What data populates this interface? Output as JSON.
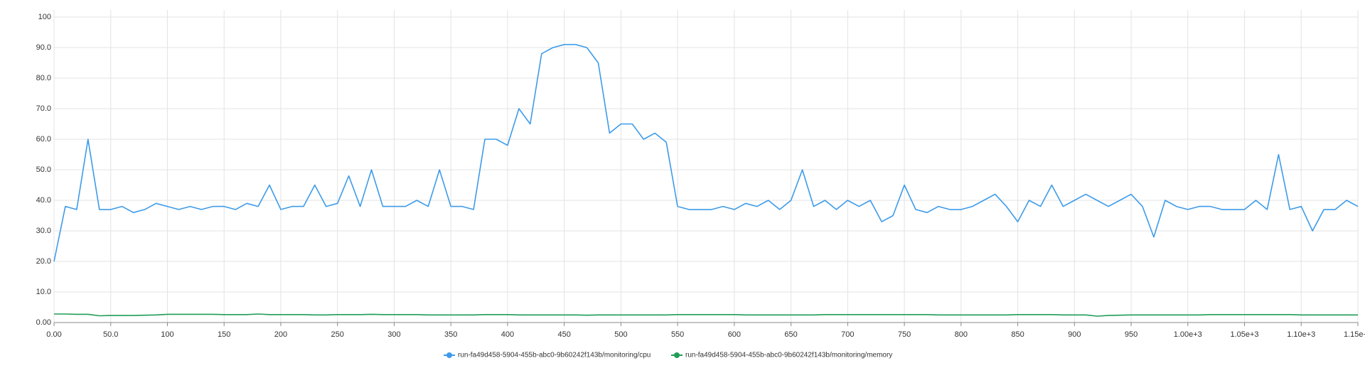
{
  "chart_data": {
    "type": "line",
    "x": [
      0,
      10,
      20,
      30,
      40,
      50,
      60,
      70,
      80,
      90,
      100,
      110,
      120,
      130,
      140,
      150,
      160,
      170,
      180,
      190,
      200,
      210,
      220,
      230,
      240,
      250,
      260,
      270,
      280,
      290,
      300,
      310,
      320,
      330,
      340,
      350,
      360,
      370,
      380,
      390,
      400,
      410,
      420,
      430,
      440,
      450,
      460,
      470,
      480,
      490,
      500,
      510,
      520,
      530,
      540,
      550,
      560,
      570,
      580,
      590,
      600,
      610,
      620,
      630,
      640,
      650,
      660,
      670,
      680,
      690,
      700,
      710,
      720,
      730,
      740,
      750,
      760,
      770,
      780,
      790,
      800,
      810,
      820,
      830,
      840,
      850,
      860,
      870,
      880,
      890,
      900,
      910,
      920,
      930,
      940,
      950,
      960,
      970,
      980,
      990,
      1000,
      1010,
      1020,
      1030,
      1040,
      1050,
      1060,
      1070,
      1080,
      1090,
      1100,
      1110,
      1120,
      1130,
      1140,
      1150
    ],
    "series": [
      {
        "name": "run-fa49d458-5904-455b-abc0-9b60242f143b/monitoring/cpu",
        "color": "#3d9be9",
        "values": [
          20,
          38,
          37,
          60,
          37,
          37,
          38,
          36,
          37,
          39,
          38,
          37,
          38,
          37,
          38,
          38,
          37,
          39,
          38,
          45,
          37,
          38,
          38,
          45,
          38,
          39,
          48,
          38,
          50,
          38,
          38,
          38,
          40,
          38,
          50,
          38,
          38,
          37,
          60,
          60,
          58,
          70,
          65,
          88,
          90,
          91,
          91,
          90,
          85,
          62,
          65,
          65,
          60,
          62,
          59,
          38,
          37,
          37,
          37,
          38,
          37,
          39,
          38,
          40,
          37,
          40,
          50,
          38,
          40,
          37,
          40,
          38,
          40,
          33,
          35,
          45,
          37,
          36,
          38,
          37,
          37,
          38,
          40,
          42,
          38,
          33,
          40,
          38,
          45,
          38,
          40,
          42,
          40,
          38,
          40,
          42,
          38,
          28,
          40,
          38,
          37,
          38,
          38,
          37,
          37,
          37,
          40,
          37,
          55,
          37,
          38,
          30,
          37,
          37,
          40,
          38
        ]
      },
      {
        "name": "run-fa49d458-5904-455b-abc0-9b60242f143b/monitoring/memory",
        "color": "#1f9d55",
        "values": [
          2.8,
          2.8,
          2.7,
          2.7,
          2.2,
          2.3,
          2.3,
          2.3,
          2.4,
          2.5,
          2.7,
          2.7,
          2.7,
          2.7,
          2.7,
          2.6,
          2.6,
          2.6,
          2.8,
          2.6,
          2.6,
          2.6,
          2.6,
          2.5,
          2.5,
          2.6,
          2.6,
          2.6,
          2.7,
          2.6,
          2.6,
          2.6,
          2.6,
          2.5,
          2.5,
          2.5,
          2.5,
          2.5,
          2.6,
          2.6,
          2.6,
          2.5,
          2.5,
          2.5,
          2.5,
          2.5,
          2.5,
          2.4,
          2.5,
          2.5,
          2.5,
          2.5,
          2.5,
          2.5,
          2.5,
          2.6,
          2.6,
          2.6,
          2.6,
          2.6,
          2.6,
          2.5,
          2.5,
          2.5,
          2.5,
          2.5,
          2.5,
          2.5,
          2.6,
          2.6,
          2.6,
          2.6,
          2.6,
          2.6,
          2.6,
          2.6,
          2.6,
          2.6,
          2.5,
          2.5,
          2.5,
          2.5,
          2.5,
          2.5,
          2.5,
          2.6,
          2.6,
          2.6,
          2.6,
          2.5,
          2.5,
          2.5,
          2.1,
          2.3,
          2.4,
          2.5,
          2.5,
          2.5,
          2.5,
          2.5,
          2.5,
          2.5,
          2.6,
          2.6,
          2.6,
          2.6,
          2.6,
          2.6,
          2.6,
          2.6,
          2.5,
          2.5,
          2.5,
          2.5,
          2.5,
          2.5
        ]
      }
    ],
    "xlim": [
      0,
      1150
    ],
    "xticks": [
      {
        "value": 0,
        "label": "0.00"
      },
      {
        "value": 50,
        "label": "50.0"
      },
      100,
      150,
      200,
      250,
      300,
      350,
      400,
      450,
      500,
      550,
      600,
      650,
      700,
      750,
      800,
      850,
      900,
      950,
      {
        "value": 1000,
        "label": "1.00e+3"
      },
      {
        "value": 1050,
        "label": "1.05e+3"
      },
      {
        "value": 1100,
        "label": "1.10e+3"
      },
      {
        "value": 1150,
        "label": "1.15e+3"
      }
    ],
    "ylim": [
      0,
      100
    ],
    "yticks": [
      {
        "value": 0,
        "label": "0.00"
      },
      {
        "value": 10,
        "label": "10.0"
      },
      {
        "value": 20,
        "label": "20.0"
      },
      {
        "value": 30,
        "label": "30.0"
      },
      {
        "value": 40,
        "label": "40.0"
      },
      {
        "value": 50,
        "label": "50.0"
      },
      {
        "value": 60,
        "label": "60.0"
      },
      {
        "value": 70,
        "label": "70.0"
      },
      {
        "value": 80,
        "label": "80.0"
      },
      {
        "value": 90,
        "label": "90.0"
      },
      100
    ],
    "grid": true,
    "legend": "bottom"
  }
}
